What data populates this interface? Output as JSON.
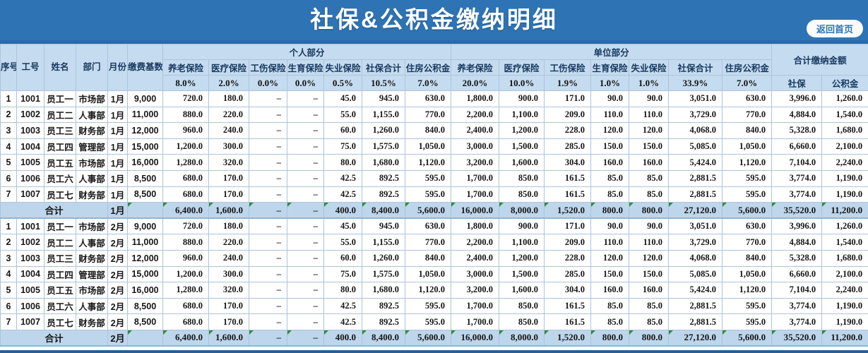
{
  "title": "社保&公积金缴纳明细",
  "back_button_label": "返回首页",
  "colors": {
    "title_bg": "#2e74b5",
    "title_text": "#ffffff",
    "header_bg": "#c5dcf0",
    "header_text": "#17375e",
    "total_row_bg": "#bdd6ec",
    "formula_triangle": "#2e8b3a",
    "cell_border": "#aec3da"
  },
  "header": {
    "left_columns": [
      "序号",
      "工号",
      "姓名",
      "部门",
      "月份",
      "缴费基数"
    ],
    "group_personal": "个人部分",
    "group_company": "单位部分",
    "group_grand_total": "合计缴纳金额",
    "sub_columns": [
      "养老保险",
      "医疗保险",
      "工伤保险",
      "生育保险",
      "失业保险",
      "社保合计",
      "住房公积金"
    ],
    "personal_rates": [
      "8.0%",
      "2.0%",
      "0.0%",
      "0.0%",
      "0.5%",
      "10.5%",
      "7.0%"
    ],
    "company_rates": [
      "20.0%",
      "10.0%",
      "1.9%",
      "1.0%",
      "1.0%",
      "33.9%",
      "7.0%"
    ],
    "grand_total_sub_columns": [
      "社保",
      "公积金"
    ]
  },
  "total_label": "合计",
  "sections": [
    {
      "month": "1月",
      "rows": [
        [
          "1",
          "1001",
          "员工一",
          "市场部",
          "1月",
          "9,000",
          "720.0",
          "180.0",
          "–",
          "–",
          "45.0",
          "945.0",
          "630.0",
          "1,800.0",
          "900.0",
          "171.0",
          "90.0",
          "90.0",
          "3,051.0",
          "630.0",
          "3,996.0",
          "1,260.0"
        ],
        [
          "2",
          "1002",
          "员工二",
          "人事部",
          "1月",
          "11,000",
          "880.0",
          "220.0",
          "–",
          "–",
          "55.0",
          "1,155.0",
          "770.0",
          "2,200.0",
          "1,100.0",
          "209.0",
          "110.0",
          "110.0",
          "3,729.0",
          "770.0",
          "4,884.0",
          "1,540.0"
        ],
        [
          "3",
          "1003",
          "员工三",
          "财务部",
          "1月",
          "12,000",
          "960.0",
          "240.0",
          "–",
          "–",
          "60.0",
          "1,260.0",
          "840.0",
          "2,400.0",
          "1,200.0",
          "228.0",
          "120.0",
          "120.0",
          "4,068.0",
          "840.0",
          "5,328.0",
          "1,680.0"
        ],
        [
          "4",
          "1004",
          "员工四",
          "管理部",
          "1月",
          "15,000",
          "1,200.0",
          "300.0",
          "–",
          "–",
          "75.0",
          "1,575.0",
          "1,050.0",
          "3,000.0",
          "1,500.0",
          "285.0",
          "150.0",
          "150.0",
          "5,085.0",
          "1,050.0",
          "6,660.0",
          "2,100.0"
        ],
        [
          "5",
          "1005",
          "员工五",
          "市场部",
          "1月",
          "16,000",
          "1,280.0",
          "320.0",
          "–",
          "–",
          "80.0",
          "1,680.0",
          "1,120.0",
          "3,200.0",
          "1,600.0",
          "304.0",
          "160.0",
          "160.0",
          "5,424.0",
          "1,120.0",
          "7,104.0",
          "2,240.0"
        ],
        [
          "6",
          "1006",
          "员工六",
          "人事部",
          "1月",
          "8,500",
          "680.0",
          "170.0",
          "–",
          "–",
          "42.5",
          "892.5",
          "595.0",
          "1,700.0",
          "850.0",
          "161.5",
          "85.0",
          "85.0",
          "2,881.5",
          "595.0",
          "3,774.0",
          "1,190.0"
        ],
        [
          "7",
          "1007",
          "员工七",
          "财务部",
          "1月",
          "8,500",
          "680.0",
          "170.0",
          "–",
          "–",
          "42.5",
          "892.5",
          "595.0",
          "1,700.0",
          "850.0",
          "161.5",
          "85.0",
          "85.0",
          "2,881.5",
          "595.0",
          "3,774.0",
          "1,190.0"
        ]
      ],
      "total": [
        "合计",
        "1月",
        "",
        "6,400.0",
        "1,600.0",
        "–",
        "–",
        "400.0",
        "8,400.0",
        "5,600.0",
        "16,000.0",
        "8,000.0",
        "1,520.0",
        "800.0",
        "800.0",
        "27,120.0",
        "5,600.0",
        "35,520.0",
        "11,200.0"
      ]
    },
    {
      "month": "2月",
      "rows": [
        [
          "1",
          "1001",
          "员工一",
          "市场部",
          "2月",
          "9,000",
          "720.0",
          "180.0",
          "–",
          "–",
          "45.0",
          "945.0",
          "630.0",
          "1,800.0",
          "900.0",
          "171.0",
          "90.0",
          "90.0",
          "3,051.0",
          "630.0",
          "3,996.0",
          "1,260.0"
        ],
        [
          "2",
          "1002",
          "员工二",
          "人事部",
          "2月",
          "11,000",
          "880.0",
          "220.0",
          "–",
          "–",
          "55.0",
          "1,155.0",
          "770.0",
          "2,200.0",
          "1,100.0",
          "209.0",
          "110.0",
          "110.0",
          "3,729.0",
          "770.0",
          "4,884.0",
          "1,540.0"
        ],
        [
          "3",
          "1003",
          "员工三",
          "财务部",
          "2月",
          "12,000",
          "960.0",
          "240.0",
          "–",
          "–",
          "60.0",
          "1,260.0",
          "840.0",
          "2,400.0",
          "1,200.0",
          "228.0",
          "120.0",
          "120.0",
          "4,068.0",
          "840.0",
          "5,328.0",
          "1,680.0"
        ],
        [
          "4",
          "1004",
          "员工四",
          "管理部",
          "2月",
          "15,000",
          "1,200.0",
          "300.0",
          "–",
          "–",
          "75.0",
          "1,575.0",
          "1,050.0",
          "3,000.0",
          "1,500.0",
          "285.0",
          "150.0",
          "150.0",
          "5,085.0",
          "1,050.0",
          "6,660.0",
          "2,100.0"
        ],
        [
          "5",
          "1005",
          "员工五",
          "市场部",
          "2月",
          "16,000",
          "1,280.0",
          "320.0",
          "–",
          "–",
          "80.0",
          "1,680.0",
          "1,120.0",
          "3,200.0",
          "1,600.0",
          "304.0",
          "160.0",
          "160.0",
          "5,424.0",
          "1,120.0",
          "7,104.0",
          "2,240.0"
        ],
        [
          "6",
          "1006",
          "员工六",
          "人事部",
          "2月",
          "8,500",
          "680.0",
          "170.0",
          "–",
          "–",
          "42.5",
          "892.5",
          "595.0",
          "1,700.0",
          "850.0",
          "161.5",
          "85.0",
          "85.0",
          "2,881.5",
          "595.0",
          "3,774.0",
          "1,190.0"
        ],
        [
          "7",
          "1007",
          "员工七",
          "财务部",
          "2月",
          "8,500",
          "680.0",
          "170.0",
          "–",
          "–",
          "42.5",
          "892.5",
          "595.0",
          "1,700.0",
          "850.0",
          "161.5",
          "85.0",
          "85.0",
          "2,881.5",
          "595.0",
          "3,774.0",
          "1,190.0"
        ]
      ],
      "total": [
        "合计",
        "2月",
        "",
        "6,400.0",
        "1,600.0",
        "–",
        "–",
        "400.0",
        "8,400.0",
        "5,600.0",
        "16,000.0",
        "8,000.0",
        "1,520.0",
        "800.0",
        "800.0",
        "27,120.0",
        "5,600.0",
        "35,520.0",
        "11,200.0"
      ]
    }
  ]
}
